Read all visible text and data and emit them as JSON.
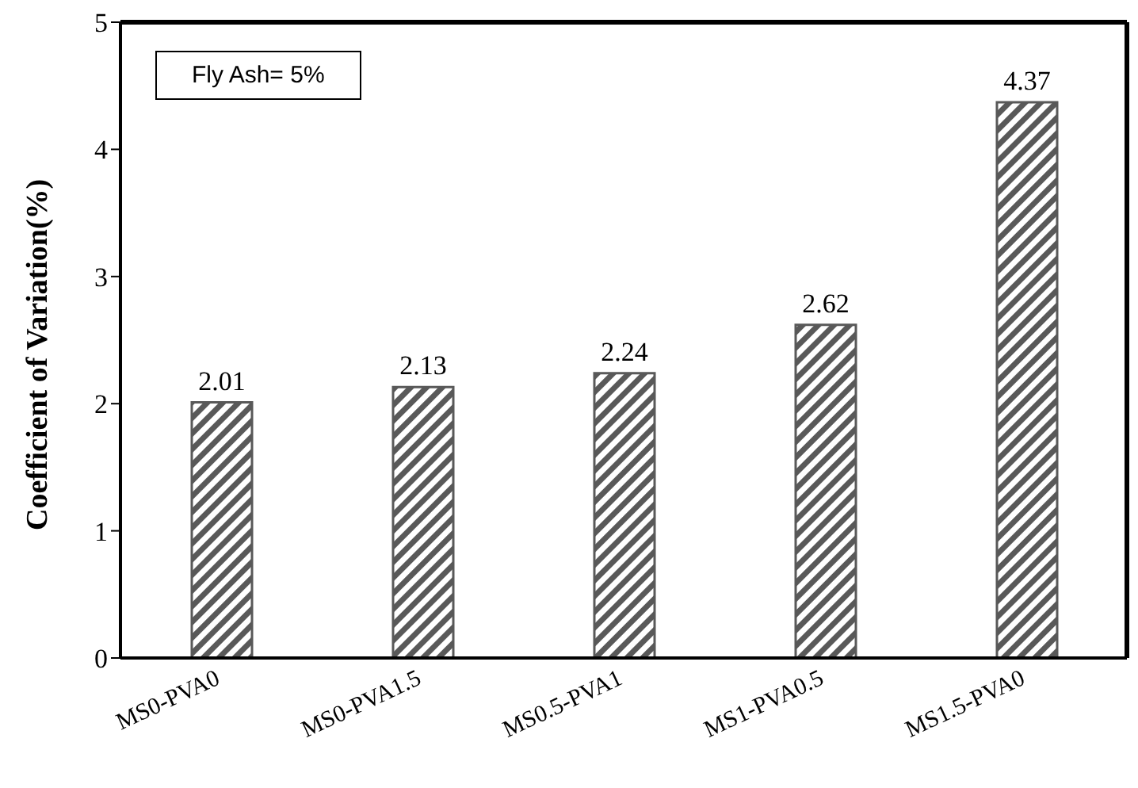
{
  "chart_data": {
    "type": "bar",
    "ylabel": "Coefficient of Variation(%)",
    "categories": [
      "MS0-PVA0",
      "MS0-PVA1.5",
      "MS0.5-PVA1",
      "MS1-PVA0.5",
      "MS1.5-PVA0"
    ],
    "values": [
      2.01,
      2.13,
      2.24,
      2.62,
      4.37
    ],
    "color": "#595959",
    "ylim": [
      0,
      5
    ],
    "yticks": [
      0,
      1,
      2,
      3,
      4,
      5
    ],
    "grid": false,
    "data_labels": true,
    "annotations": [
      "Fly Ash= 5%"
    ]
  }
}
